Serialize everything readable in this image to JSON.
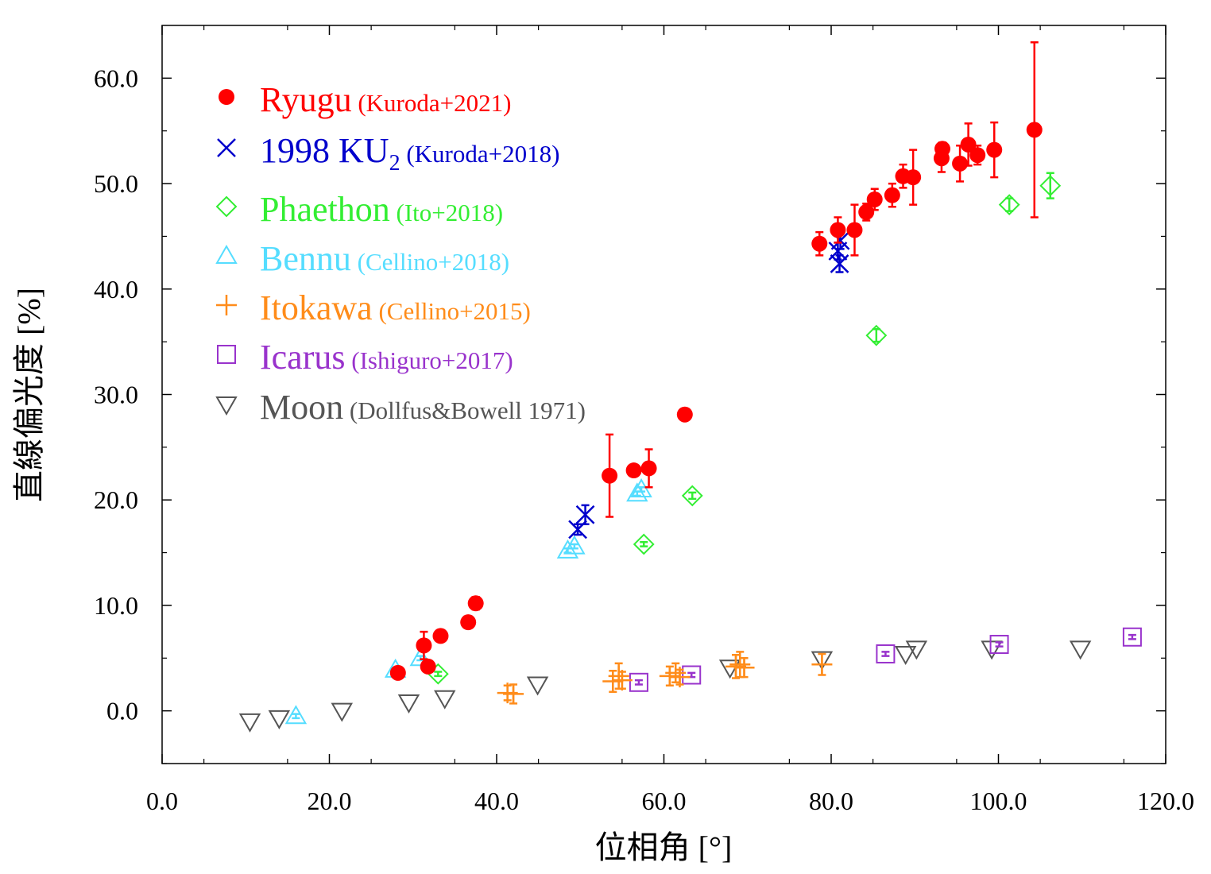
{
  "chart_data": {
    "type": "scatter",
    "xlabel": "位相角 [°]",
    "ylabel": "直線偏光度 [%]",
    "xlim": [
      0,
      120
    ],
    "ylim": [
      -5,
      65
    ],
    "xticks": [
      {
        "v": 0,
        "label": "0.0"
      },
      {
        "v": 20,
        "label": "20.0"
      },
      {
        "v": 40,
        "label": "40.0"
      },
      {
        "v": 60,
        "label": "60.0"
      },
      {
        "v": 80,
        "label": "80.0"
      },
      {
        "v": 100,
        "label": "100.0"
      },
      {
        "v": 120,
        "label": "120.0"
      }
    ],
    "yticks": [
      {
        "v": 0,
        "label": "0.0"
      },
      {
        "v": 10,
        "label": "10.0"
      },
      {
        "v": 20,
        "label": "20.0"
      },
      {
        "v": 30,
        "label": "30.0"
      },
      {
        "v": 40,
        "label": "40.0"
      },
      {
        "v": 50,
        "label": "50.0"
      },
      {
        "v": 60,
        "label": "60.0"
      }
    ],
    "grid": false,
    "legend_position": "top-left",
    "series": [
      {
        "name": "Ryugu",
        "sub": "",
        "ref": "(Kuroda+2021)",
        "color": "#ff0000",
        "marker": "circle",
        "points": [
          {
            "x": 28.2,
            "y": 3.6,
            "e": 0.5
          },
          {
            "x": 31.3,
            "y": 6.2,
            "e": 1.3
          },
          {
            "x": 31.8,
            "y": 4.2,
            "e": 0.4
          },
          {
            "x": 33.3,
            "y": 7.1,
            "e": 0.3
          },
          {
            "x": 36.6,
            "y": 8.4,
            "e": 0.3
          },
          {
            "x": 37.5,
            "y": 10.2,
            "e": 0.6
          },
          {
            "x": 53.5,
            "y": 22.3,
            "e": 3.9
          },
          {
            "x": 56.4,
            "y": 22.8,
            "e": 0.5
          },
          {
            "x": 58.2,
            "y": 23.0,
            "e": 1.8
          },
          {
            "x": 62.5,
            "y": 28.1,
            "e": 0.4
          },
          {
            "x": 78.6,
            "y": 44.3,
            "e": 1.1
          },
          {
            "x": 80.8,
            "y": 45.6,
            "e": 1.2
          },
          {
            "x": 82.8,
            "y": 45.6,
            "e": 2.4
          },
          {
            "x": 84.2,
            "y": 47.3,
            "e": 0.8
          },
          {
            "x": 85.2,
            "y": 48.5,
            "e": 1.0
          },
          {
            "x": 87.3,
            "y": 48.9,
            "e": 1.1
          },
          {
            "x": 88.6,
            "y": 50.7,
            "e": 1.1
          },
          {
            "x": 89.8,
            "y": 50.6,
            "e": 2.6
          },
          {
            "x": 93.2,
            "y": 52.4,
            "e": 1.3
          },
          {
            "x": 93.3,
            "y": 53.3,
            "e": 0.6
          },
          {
            "x": 95.4,
            "y": 51.9,
            "e": 1.7
          },
          {
            "x": 96.4,
            "y": 53.7,
            "e": 2.0
          },
          {
            "x": 97.5,
            "y": 52.7,
            "e": 0.9
          },
          {
            "x": 99.5,
            "y": 53.2,
            "e": 2.6
          },
          {
            "x": 104.3,
            "y": 55.1,
            "e": 8.3
          }
        ]
      },
      {
        "name": "1998 KU",
        "sub": "2",
        "ref": "(Kuroda+2018)",
        "color": "#0000cc",
        "marker": "x",
        "points": [
          {
            "x": 49.7,
            "y": 17.2,
            "e": 0.5
          },
          {
            "x": 50.6,
            "y": 18.6,
            "e": 0.9
          },
          {
            "x": 80.8,
            "y": 43.6,
            "e": 0.8
          },
          {
            "x": 81.0,
            "y": 42.4,
            "e": 0.8
          },
          {
            "x": 81.1,
            "y": 44.6,
            "e": 0.8
          }
        ]
      },
      {
        "name": "Phaethon",
        "sub": "",
        "ref": "(Ito+2018)",
        "color": "#33ee33",
        "marker": "diamond",
        "points": [
          {
            "x": 33.0,
            "y": 3.5,
            "e": 0.2
          },
          {
            "x": 57.6,
            "y": 15.8,
            "e": 0.2
          },
          {
            "x": 63.4,
            "y": 20.4,
            "e": 0.3
          },
          {
            "x": 85.4,
            "y": 35.6,
            "e": 0.6
          },
          {
            "x": 101.3,
            "y": 48.0,
            "e": 0.6
          },
          {
            "x": 106.2,
            "y": 49.8,
            "e": 1.2
          }
        ]
      },
      {
        "name": "Bennu",
        "sub": "",
        "ref": "(Cellino+2018)",
        "color": "#55ddff",
        "marker": "triangle-up",
        "points": [
          {
            "x": 16.0,
            "y": -0.5,
            "e": 0.2
          },
          {
            "x": 27.9,
            "y": 3.9,
            "e": 0.2
          },
          {
            "x": 30.9,
            "y": 5.0,
            "e": 0.2
          },
          {
            "x": 48.5,
            "y": 15.2,
            "e": 0.2
          },
          {
            "x": 49.3,
            "y": 15.6,
            "e": 0.2
          },
          {
            "x": 56.8,
            "y": 20.6,
            "e": 0.2
          },
          {
            "x": 57.3,
            "y": 21.0,
            "e": 0.2
          }
        ]
      },
      {
        "name": "Itokawa",
        "sub": "",
        "ref": "(Cellino+2015)",
        "color": "#ff8c1a",
        "marker": "plus",
        "points": [
          {
            "x": 41.3,
            "y": 1.7,
            "e": 0.7
          },
          {
            "x": 42.0,
            "y": 1.6,
            "e": 0.9
          },
          {
            "x": 53.9,
            "y": 2.8,
            "e": 1.0
          },
          {
            "x": 54.6,
            "y": 3.3,
            "e": 1.2
          },
          {
            "x": 55.0,
            "y": 2.9,
            "e": 0.8
          },
          {
            "x": 60.7,
            "y": 3.3,
            "e": 0.9
          },
          {
            "x": 61.4,
            "y": 3.6,
            "e": 0.9
          },
          {
            "x": 61.9,
            "y": 3.2,
            "e": 0.7
          },
          {
            "x": 68.6,
            "y": 4.2,
            "e": 1.1
          },
          {
            "x": 69.1,
            "y": 4.4,
            "e": 1.2
          },
          {
            "x": 69.6,
            "y": 4.1,
            "e": 0.9
          },
          {
            "x": 78.9,
            "y": 4.4,
            "e": 1.0
          }
        ]
      },
      {
        "name": "Icarus",
        "sub": "",
        "ref": "(Ishiguro+2017)",
        "color": "#9933cc",
        "marker": "square",
        "points": [
          {
            "x": 57.0,
            "y": 2.7,
            "e": 0.2
          },
          {
            "x": 63.3,
            "y": 3.4,
            "e": 0.2
          },
          {
            "x": 86.5,
            "y": 5.4,
            "e": 0.2
          },
          {
            "x": 100.1,
            "y": 6.3,
            "e": 0.2
          },
          {
            "x": 116.0,
            "y": 7.0,
            "e": 0.2
          }
        ]
      },
      {
        "name": "Moon",
        "sub": "",
        "ref": "(Dollfus&Bowell 1971)",
        "color": "#555555",
        "marker": "triangle-down",
        "points": [
          {
            "x": 10.5,
            "y": -1.0
          },
          {
            "x": 14.0,
            "y": -0.7
          },
          {
            "x": 21.5,
            "y": 0.0
          },
          {
            "x": 29.5,
            "y": 0.8
          },
          {
            "x": 33.8,
            "y": 1.2
          },
          {
            "x": 44.9,
            "y": 2.5
          },
          {
            "x": 67.9,
            "y": 4.1
          },
          {
            "x": 78.9,
            "y": 4.9
          },
          {
            "x": 88.9,
            "y": 5.4
          },
          {
            "x": 90.2,
            "y": 5.9
          },
          {
            "x": 99.2,
            "y": 5.9
          },
          {
            "x": 109.8,
            "y": 5.9
          }
        ]
      }
    ]
  }
}
